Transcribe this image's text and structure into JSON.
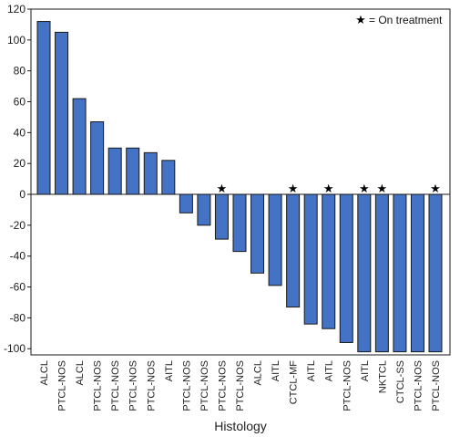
{
  "chart_data": {
    "type": "bar",
    "categories": [
      "ALCL",
      "PTCL-NOS",
      "ALCL",
      "PTCL-NOS",
      "PTCL-NOS",
      "PTCL-NOS",
      "PTCL-NOS",
      "AITL",
      "PTCL-NOS",
      "PTCL-NOS",
      "PTCL-NOS",
      "PTCL-NOS",
      "ALCL",
      "AITL",
      "CTCL-MF",
      "AITL",
      "AITL",
      "PTCL-NOS",
      "AITL",
      "NKTCL",
      "CTCL-SS",
      "PTCL-NOS",
      "PTCL-NOS"
    ],
    "values": [
      112,
      105,
      62,
      47,
      30,
      30,
      27,
      22,
      -12,
      -20,
      -29,
      -37,
      -51,
      -59,
      -73,
      -84,
      -87,
      -96,
      -102,
      -102,
      -102,
      -102,
      -102
    ],
    "on_treatment": [
      false,
      false,
      false,
      false,
      false,
      false,
      false,
      false,
      false,
      false,
      true,
      false,
      false,
      false,
      true,
      false,
      true,
      false,
      true,
      true,
      false,
      false,
      true
    ],
    "xlabel": "Histology",
    "ylabel": "",
    "ylim": [
      -104,
      120
    ],
    "yticks": [
      -100,
      -80,
      -60,
      -40,
      -20,
      0,
      20,
      40,
      60,
      80,
      100,
      120
    ],
    "legend": {
      "marker": "★",
      "text": "= On treatment",
      "position": "top-right"
    },
    "grid": false,
    "colors": {
      "bar_fill": "#4472c4",
      "bar_stroke": "#1a1a1a"
    }
  }
}
